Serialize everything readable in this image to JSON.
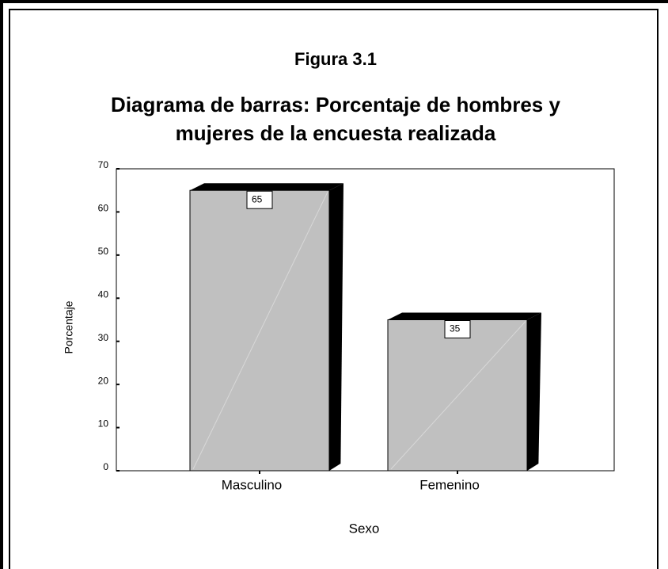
{
  "chart_data": {
    "type": "bar",
    "title": "Figura 3.1",
    "subtitle": [
      "Diagrama de barras: Porcentaje de hombres y",
      "mujeres de la encuesta realizada"
    ],
    "categories": [
      "Masculino",
      "Femenino"
    ],
    "values": [
      65,
      35
    ],
    "color": "#c0c0c0",
    "xlabel": "Sexo",
    "ylabel": "Porcentaje",
    "ylim": [
      0,
      70
    ],
    "yticks": [
      0,
      10,
      20,
      30,
      40,
      50,
      60,
      70
    ]
  }
}
